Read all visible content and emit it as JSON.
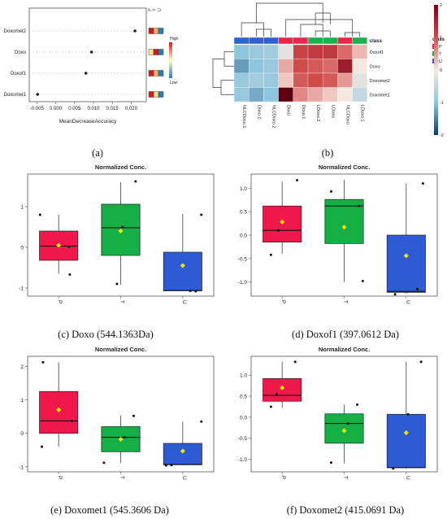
{
  "captions": {
    "a": "(a)",
    "b": "(b)",
    "c": "(c) Doxo (544.1363Da)",
    "d": "(d) Doxof1 (397.0612 Da)",
    "e": "(e) Doxomet1 (545.3606 Da)",
    "f": "(f) Doxomet2 (415.0691 Da)"
  },
  "chart_data": [
    {
      "type": "scatter",
      "panel": "a",
      "xlabel": "MeanDecreaseAccuracy",
      "ylabel": "",
      "categories": [
        "Doxomet2",
        "Doxo",
        "Doxof1",
        "Doxomet1"
      ],
      "values": [
        0.021,
        0.0095,
        0.008,
        -0.0048
      ],
      "xlim": [
        -0.007,
        0.024
      ],
      "xticks": [
        "-0.005",
        "0.000",
        "0.005",
        "0.010",
        "0.015",
        "0.020"
      ],
      "xtick_values": [
        -0.005,
        0.0,
        0.005,
        0.01,
        0.015,
        0.02
      ],
      "top_labels": [
        "P",
        "T",
        "U"
      ],
      "group_order": [
        "P",
        "T",
        "U"
      ],
      "heat_strips": [
        [
          "#d7191c",
          "#fdae61",
          "#2c7bb6"
        ],
        [
          "#fee090",
          "#d7191c",
          "#2c7bb6"
        ],
        [
          "#d7191c",
          "#fdae61",
          "#2c7bb6"
        ],
        [
          "#d7191c",
          "#fee090",
          "#2c7bb6"
        ]
      ],
      "colorbar": {
        "high": "High",
        "low": "Low",
        "colors": [
          "#d7191c",
          "#ffffbf",
          "#2c7bb6"
        ]
      }
    },
    {
      "type": "heatmap",
      "panel": "b",
      "columns": [
        "NLCDoxo.1",
        "Doxo.2",
        "NLCDoxo.2",
        "Doxo",
        "Doxo.1",
        "LDoxo.2",
        "LDoxo",
        "NLCDoxo",
        "LDoxo.1"
      ],
      "column_classes": [
        "U",
        "U",
        "U",
        "P",
        "P",
        "T",
        "T",
        "P",
        "T"
      ],
      "rows": [
        "Doxof1",
        "Doxo",
        "Doxomet2",
        "Doxomet1"
      ],
      "values": [
        [
          -1.0,
          -0.9,
          -0.8,
          -0.2,
          1.1,
          1.2,
          1.2,
          0.8,
          0.3
        ],
        [
          -1.3,
          -1.0,
          -0.9,
          0.4,
          1.0,
          0.9,
          0.8,
          1.6,
          0.0
        ],
        [
          -0.9,
          -0.8,
          -0.9,
          0.2,
          0.9,
          1.0,
          0.9,
          0.5,
          -0.2
        ],
        [
          -0.9,
          -1.2,
          -1.0,
          2.8,
          0.6,
          0.4,
          0.2,
          0.0,
          -0.5
        ]
      ],
      "legend_title": "class",
      "legend_items": [
        {
          "label": "P",
          "color": "#e8274b"
        },
        {
          "label": "T",
          "color": "#1cb04f"
        },
        {
          "label": "U",
          "color": "#2f5fd0"
        }
      ],
      "scale_ticks": [
        "2",
        "1",
        "0",
        "-1",
        "-2"
      ],
      "scale_tick_values": [
        2,
        1,
        0,
        -1,
        -2
      ],
      "scale_colors": [
        "#7a0019",
        "#d04a4a",
        "#f7e8df",
        "#8ec6df",
        "#0b3a6e"
      ]
    },
    {
      "type": "box",
      "panel": "c",
      "title": "Normalized Conc.",
      "categories": [
        "P",
        "T",
        "U"
      ],
      "colors": [
        "#f0184b",
        "#15b045",
        "#2d5bd6"
      ],
      "ylim": [
        -1.2,
        1.8
      ],
      "yticks": [
        -1,
        0,
        1
      ],
      "boxes": [
        {
          "min": -0.65,
          "q1": -0.32,
          "median": 0.03,
          "q3": 0.4,
          "max": 0.8,
          "mean": 0.05
        },
        {
          "min": -0.92,
          "q1": -0.2,
          "median": 0.48,
          "q3": 1.06,
          "max": 1.6,
          "mean": 0.4
        },
        {
          "min": -1.08,
          "q1": -1.07,
          "median": -1.06,
          "q3": -0.12,
          "max": 0.82,
          "mean": -0.45
        }
      ],
      "points": [
        {
          "group": 0,
          "offset": -0.5,
          "y": 0.8
        },
        {
          "group": 0,
          "offset": 0.3,
          "y": -0.67
        },
        {
          "group": 0,
          "offset": 0.28,
          "y": 0.01
        },
        {
          "group": 1,
          "offset": 0.4,
          "y": 1.62
        },
        {
          "group": 1,
          "offset": -0.1,
          "y": -0.9
        },
        {
          "group": 1,
          "offset": 0.05,
          "y": 0.5
        },
        {
          "group": 2,
          "offset": 0.5,
          "y": 0.8
        },
        {
          "group": 2,
          "offset": 0.2,
          "y": -1.07
        },
        {
          "group": 2,
          "offset": 0.35,
          "y": -1.08
        }
      ]
    },
    {
      "type": "box",
      "panel": "d",
      "title": "Normalized Conc.",
      "categories": [
        "P",
        "T",
        "U"
      ],
      "colors": [
        "#f0184b",
        "#15b045",
        "#2d5bd6"
      ],
      "ylim": [
        -1.3,
        1.3
      ],
      "yticks": [
        -1.0,
        -0.5,
        0.0,
        0.5,
        1.0
      ],
      "ytick_labels": [
        "-1.0",
        "-0.5",
        "0.0",
        "0.5",
        "1.0"
      ],
      "boxes": [
        {
          "min": -0.4,
          "q1": -0.15,
          "median": 0.1,
          "q3": 0.62,
          "max": 1.14,
          "mean": 0.28
        },
        {
          "min": -1.0,
          "q1": -0.18,
          "median": 0.62,
          "q3": 0.76,
          "max": 1.18,
          "mean": 0.17
        },
        {
          "min": -1.25,
          "q1": -1.22,
          "median": -1.2,
          "q3": 0.0,
          "max": 1.1,
          "mean": -0.44
        }
      ],
      "points": [
        {
          "group": 0,
          "offset": -0.1,
          "y": 0.1
        },
        {
          "group": 0,
          "offset": 0.4,
          "y": 1.17
        },
        {
          "group": 0,
          "offset": -0.3,
          "y": -0.42
        },
        {
          "group": 1,
          "offset": -0.35,
          "y": 0.93
        },
        {
          "group": 1,
          "offset": 0.5,
          "y": -0.98
        },
        {
          "group": 1,
          "offset": 0.4,
          "y": 0.62
        },
        {
          "group": 2,
          "offset": 0.3,
          "y": -1.15
        },
        {
          "group": 2,
          "offset": 0.45,
          "y": 1.1
        },
        {
          "group": 2,
          "offset": -0.3,
          "y": -1.26
        }
      ]
    },
    {
      "type": "box",
      "panel": "e",
      "title": "Normalized Conc.",
      "categories": [
        "P",
        "T",
        "U"
      ],
      "colors": [
        "#f0184b",
        "#15b045",
        "#2d5bd6"
      ],
      "ylim": [
        -1.15,
        2.3
      ],
      "yticks": [
        -1,
        0,
        1,
        2
      ],
      "boxes": [
        {
          "min": -0.4,
          "q1": 0.0,
          "median": 0.37,
          "q3": 1.25,
          "max": 2.12,
          "mean": 0.7
        },
        {
          "min": -0.88,
          "q1": -0.55,
          "median": -0.12,
          "q3": 0.2,
          "max": 0.52,
          "mean": -0.18
        },
        {
          "min": -0.95,
          "q1": -0.94,
          "median": -0.93,
          "q3": -0.3,
          "max": 0.35,
          "mean": -0.53
        }
      ],
      "points": [
        {
          "group": 0,
          "offset": -0.42,
          "y": 2.12
        },
        {
          "group": 0,
          "offset": -0.45,
          "y": -0.4
        },
        {
          "group": 0,
          "offset": 0.35,
          "y": 0.37
        },
        {
          "group": 1,
          "offset": 0.35,
          "y": 0.52
        },
        {
          "group": 1,
          "offset": -0.45,
          "y": -0.88
        },
        {
          "group": 1,
          "offset": 0.1,
          "y": -0.12
        },
        {
          "group": 2,
          "offset": 0.5,
          "y": 0.35
        },
        {
          "group": 2,
          "offset": -0.45,
          "y": -0.96
        },
        {
          "group": 2,
          "offset": -0.3,
          "y": -0.95
        }
      ]
    },
    {
      "type": "box",
      "panel": "f",
      "title": "Normalized Conc.",
      "categories": [
        "P",
        "T",
        "U"
      ],
      "colors": [
        "#f0184b",
        "#15b045",
        "#2d5bd6"
      ],
      "ylim": [
        -1.3,
        1.45
      ],
      "yticks": [
        -1.0,
        -0.5,
        0.0,
        0.5,
        1.0
      ],
      "ytick_labels": [
        "-1.0",
        "-0.5",
        "0.0",
        "0.5",
        "1.0"
      ],
      "boxes": [
        {
          "min": 0.22,
          "q1": 0.38,
          "median": 0.52,
          "q3": 0.92,
          "max": 1.32,
          "mean": 0.7
        },
        {
          "min": -1.1,
          "q1": -0.62,
          "median": -0.15,
          "q3": 0.08,
          "max": 0.3,
          "mean": -0.32
        },
        {
          "min": -1.22,
          "q1": -1.2,
          "median": -1.2,
          "q3": 0.07,
          "max": 1.32,
          "mean": -0.37
        }
      ],
      "points": [
        {
          "group": 0,
          "offset": 0.35,
          "y": 1.32
        },
        {
          "group": 0,
          "offset": -0.3,
          "y": 0.25
        },
        {
          "group": 0,
          "offset": -0.15,
          "y": 0.55
        },
        {
          "group": 1,
          "offset": 0.35,
          "y": 0.3
        },
        {
          "group": 1,
          "offset": -0.35,
          "y": -1.08
        },
        {
          "group": 1,
          "offset": 0.1,
          "y": -0.15
        },
        {
          "group": 2,
          "offset": 0.4,
          "y": 1.32
        },
        {
          "group": 2,
          "offset": -0.35,
          "y": -1.22
        },
        {
          "group": 2,
          "offset": 0.05,
          "y": 0.07
        }
      ]
    }
  ]
}
